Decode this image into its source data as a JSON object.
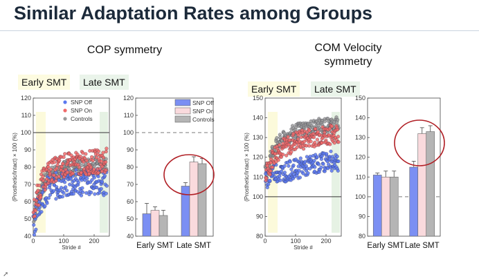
{
  "slide": {
    "title": "Similar Adaptation Rates among Groups"
  },
  "left_panel": {
    "subtitle": "COP symmetry",
    "early_label": "Early SMT",
    "late_label": "Late SMT"
  },
  "right_panel": {
    "subtitle_line1": "COM Velocity",
    "subtitle_line2": "symmetry",
    "early_label": "Early SMT",
    "late_label": "Late SMT"
  },
  "colors": {
    "snp_off": "#5a78f0",
    "snp_on": "#f06a6a",
    "controls": "#9a9a9a",
    "snp_off_bar": "#7b8ff3",
    "snp_on_bar": "#fadadd",
    "controls_bar": "#b5b5b5",
    "highlight_circle": "#b01e24"
  },
  "chart_data": [
    {
      "type": "scatter",
      "ylabel": "(Prosthetic/Intact) × 100 (%)",
      "xlabel": "Stride #",
      "xlim": [
        0,
        250
      ],
      "ylim": [
        40,
        120
      ],
      "xticks": [
        0,
        100,
        200
      ],
      "yticks": [
        40,
        50,
        60,
        70,
        80,
        90,
        100,
        110,
        120
      ],
      "reference_line": 100,
      "legend": [
        "SNP Off",
        "SNP On",
        "Controls"
      ],
      "legend_position": "top-left",
      "series": [
        {
          "name": "SNP Off",
          "x": [
            1,
            25,
            50,
            100,
            150,
            200,
            240
          ],
          "y": [
            48,
            62,
            68,
            70,
            71,
            72,
            71
          ]
        },
        {
          "name": "SNP On",
          "x": [
            1,
            25,
            50,
            100,
            150,
            200,
            240
          ],
          "y": [
            55,
            70,
            77,
            81,
            82,
            83,
            84
          ]
        },
        {
          "name": "Controls",
          "x": [
            1,
            25,
            50,
            100,
            150,
            200,
            240
          ],
          "y": [
            52,
            68,
            75,
            79,
            80,
            81,
            82
          ]
        }
      ]
    },
    {
      "type": "bar",
      "categories": [
        "Early SMT",
        "Late SMT"
      ],
      "ylim": [
        40,
        120
      ],
      "yticks": [
        40,
        50,
        60,
        70,
        80,
        90,
        100,
        110,
        120
      ],
      "reference_line": 100,
      "legend": [
        "SNP Off",
        "SNP On",
        "Controls"
      ],
      "legend_position": "top-right",
      "series": [
        {
          "name": "SNP Off",
          "values": [
            53,
            69
          ],
          "errors": [
            6,
            2
          ]
        },
        {
          "name": "SNP On",
          "values": [
            55,
            83
          ],
          "errors": [
            2,
            3
          ]
        },
        {
          "name": "Controls",
          "values": [
            52,
            82
          ],
          "errors": [
            3,
            3
          ]
        }
      ]
    },
    {
      "type": "scatter",
      "ylabel": "(Prosthetic/Intact) × 100 (%)",
      "xlabel": "Stride #",
      "xlim": [
        0,
        250
      ],
      "ylim": [
        80,
        150
      ],
      "xticks": [
        0,
        100,
        200
      ],
      "yticks": [
        80,
        90,
        100,
        110,
        120,
        130,
        140,
        150
      ],
      "reference_line": 100,
      "series": [
        {
          "name": "SNP Off",
          "x": [
            1,
            25,
            50,
            100,
            150,
            200,
            240
          ],
          "y": [
            108,
            113,
            112,
            114,
            116,
            118,
            118
          ]
        },
        {
          "name": "SNP On",
          "x": [
            1,
            25,
            50,
            100,
            150,
            200,
            240
          ],
          "y": [
            110,
            120,
            124,
            128,
            130,
            131,
            132
          ]
        },
        {
          "name": "Controls",
          "x": [
            1,
            25,
            50,
            100,
            150,
            200,
            240
          ],
          "y": [
            112,
            124,
            128,
            133,
            135,
            136,
            137
          ]
        }
      ]
    },
    {
      "type": "bar",
      "categories": [
        "Early SMT",
        "Late SMT"
      ],
      "ylim": [
        80,
        150
      ],
      "yticks": [
        80,
        90,
        100,
        110,
        120,
        130,
        140,
        150
      ],
      "reference_line": 100,
      "series": [
        {
          "name": "SNP Off",
          "values": [
            111,
            115
          ],
          "errors": [
            1,
            3
          ]
        },
        {
          "name": "SNP On",
          "values": [
            110,
            132
          ],
          "errors": [
            3,
            3
          ]
        },
        {
          "name": "Controls",
          "values": [
            110,
            133
          ],
          "errors": [
            3,
            3
          ]
        }
      ]
    }
  ]
}
